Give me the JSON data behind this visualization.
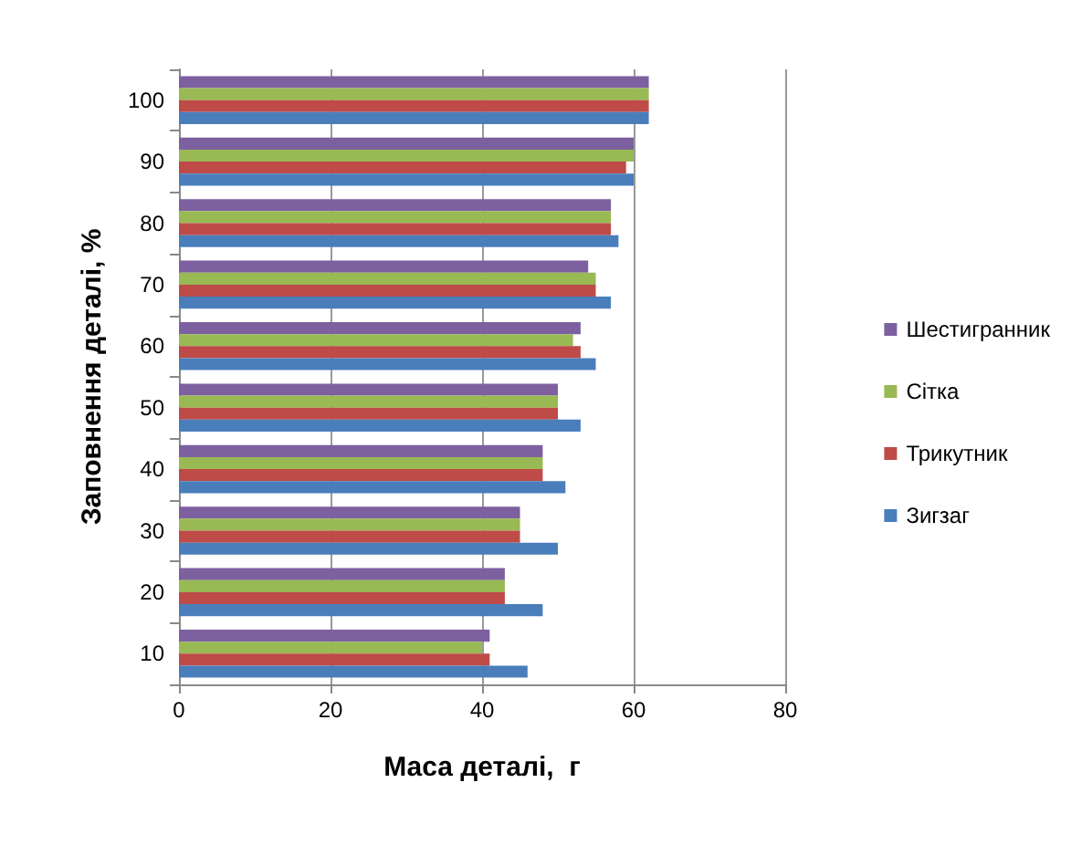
{
  "chart_data": {
    "type": "bar",
    "orientation": "horizontal",
    "xlabel": "Маса деталі,  г",
    "ylabel": "Заповнення деталі, %",
    "categories": [
      "100",
      "90",
      "80",
      "70",
      "60",
      "50",
      "40",
      "30",
      "20",
      "10"
    ],
    "series": [
      {
        "name": "Шестигранник",
        "color": "#7d60a0",
        "values": [
          62,
          60,
          57,
          54,
          53,
          50,
          48,
          45,
          43,
          41
        ]
      },
      {
        "name": "Сітка",
        "color": "#98b954",
        "values": [
          62,
          60,
          57,
          55,
          52,
          50,
          48,
          45,
          43,
          40
        ]
      },
      {
        "name": "Трикутник",
        "color": "#be4b48",
        "values": [
          62,
          59,
          57,
          55,
          53,
          50,
          48,
          45,
          43,
          41
        ]
      },
      {
        "name": "Зигзаг",
        "color": "#4a7ebb",
        "values": [
          62,
          60,
          58,
          57,
          55,
          53,
          51,
          50,
          48,
          46
        ]
      }
    ],
    "xlim": [
      0,
      80
    ],
    "xticks": [
      0,
      20,
      40,
      60,
      80
    ],
    "grid": "x",
    "legend": "right"
  }
}
